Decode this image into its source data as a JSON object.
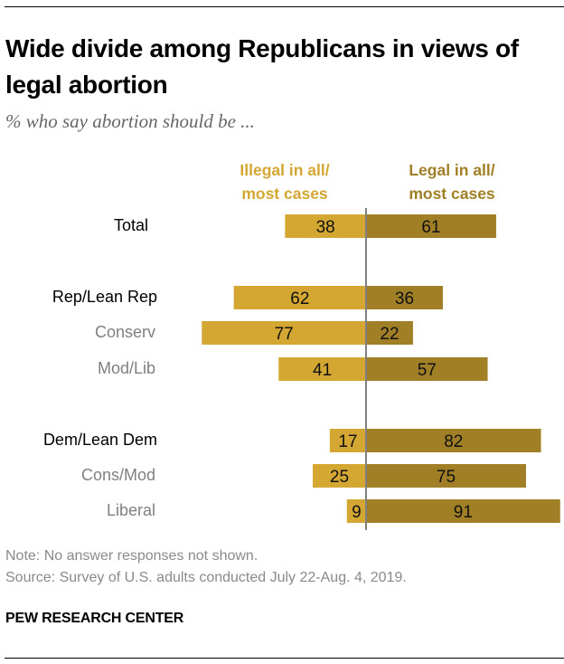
{
  "title": "Wide divide among Republicans in views of legal abortion",
  "subtitle": "% who say abortion should be ...",
  "colors": {
    "illegal": "#D4A733",
    "legal": "#A07F27",
    "axis": "#808080"
  },
  "chart_data": {
    "type": "bar",
    "orientation": "horizontal-diverging",
    "title": "Wide divide among Republicans in views of legal abortion",
    "subtitle": "% who say abortion should be ...",
    "legend": [
      "Illegal in all/ most cases",
      "Legal in all/ most cases"
    ],
    "legend_placement": "top",
    "categories": [
      "Total",
      "Rep/Lean Rep",
      "Conserv",
      "Mod/Lib",
      "Dem/Lean Dem",
      "Cons/Mod",
      "Liberal"
    ],
    "category_level": [
      "primary",
      "primary",
      "sub",
      "sub",
      "primary",
      "sub",
      "sub"
    ],
    "groups": [
      0,
      1,
      1,
      1,
      2,
      2,
      2
    ],
    "series": [
      {
        "name": "Illegal in all/ most cases",
        "direction": "left",
        "values": [
          38,
          62,
          77,
          41,
          17,
          25,
          9
        ]
      },
      {
        "name": "Legal in all/ most cases",
        "direction": "right",
        "values": [
          61,
          36,
          22,
          57,
          82,
          75,
          91
        ]
      }
    ],
    "xlim": [
      -80,
      95
    ],
    "grid": false
  },
  "legend": {
    "illegal_line1": "Illegal in all/",
    "illegal_line2": "most cases",
    "legal_line1": "Legal in all/",
    "legal_line2": "most cases"
  },
  "notes": {
    "note": "Note: No answer responses not shown.",
    "source": "Source: Survey of U.S. adults conducted July 22-Aug. 4, 2019."
  },
  "brand": "PEW RESEARCH CENTER"
}
